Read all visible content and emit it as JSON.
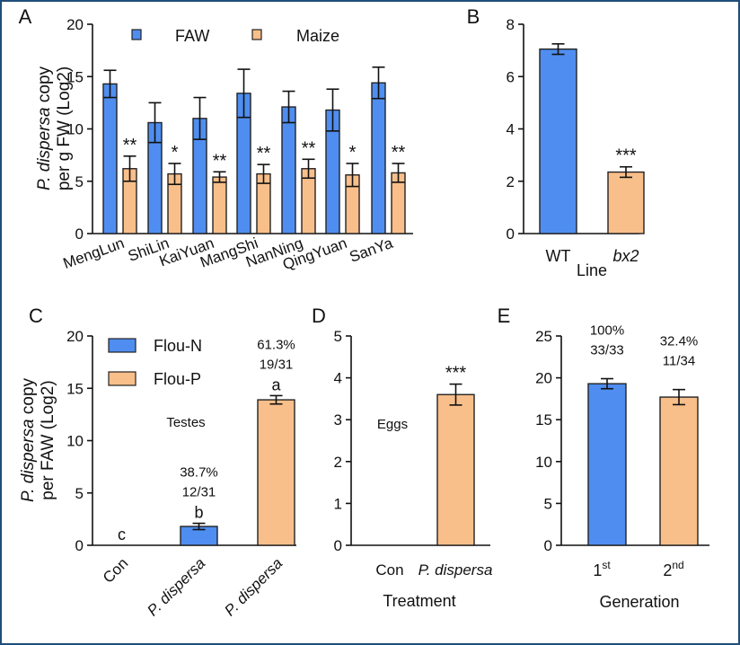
{
  "colors": {
    "blue": "#4f8ef0",
    "orange": "#f9bf8a",
    "stroke": "#222222"
  },
  "chart_data": [
    {
      "panel": "A",
      "type": "bar",
      "ylabel_italic": "P. dispersa",
      "ylabel_rest": " copy",
      "ylabel_line2": "per g FW (Log2)",
      "ylim": [
        0,
        20
      ],
      "yticks": [
        "0",
        "5",
        "10",
        "15",
        "20"
      ],
      "categories": [
        "MengLun",
        "ShiLin",
        "KaiYuan",
        "MangShi",
        "NanNing",
        "QingYuan",
        "SanYa"
      ],
      "legend_position": "top",
      "series": [
        {
          "name": "FAW",
          "color": "#4f8ef0",
          "values": [
            14.3,
            10.6,
            11.0,
            13.4,
            12.1,
            11.8,
            14.4
          ],
          "errors": [
            1.3,
            1.9,
            2.0,
            2.3,
            1.5,
            2.0,
            1.5
          ]
        },
        {
          "name": "Maize",
          "color": "#f9bf8a",
          "values": [
            6.2,
            5.7,
            5.4,
            5.7,
            6.2,
            5.6,
            5.8
          ],
          "errors": [
            1.2,
            1.0,
            0.5,
            0.9,
            0.9,
            1.1,
            0.9
          ]
        }
      ],
      "significance": [
        "**",
        "*",
        "**",
        "**",
        "**",
        "*",
        "**"
      ]
    },
    {
      "panel": "B",
      "type": "bar",
      "xlabel": "Line",
      "ylim": [
        0,
        8
      ],
      "yticks": [
        "0",
        "2",
        "4",
        "6",
        "8"
      ],
      "categories": [
        "WT",
        "bx2"
      ],
      "values": [
        7.05,
        2.35
      ],
      "errors": [
        0.2,
        0.2
      ],
      "colors": [
        "#4f8ef0",
        "#f9bf8a"
      ],
      "significance": [
        "",
        "***"
      ]
    },
    {
      "panel": "C",
      "type": "bar",
      "ylabel_italic": "P. dispersa",
      "ylabel_rest": " copy",
      "ylabel_line2": "per FAW (Log2)",
      "ylim": [
        0,
        20
      ],
      "yticks": [
        "0",
        "5",
        "10",
        "15",
        "20"
      ],
      "categories": [
        "Con",
        "P. dispersa",
        "P. dispersa"
      ],
      "values": [
        0,
        1.8,
        13.9
      ],
      "errors": [
        0,
        0.3,
        0.4
      ],
      "colors": [
        "#4f8ef0",
        "#4f8ef0",
        "#f9bf8a"
      ],
      "letters": [
        "c",
        "b",
        "a"
      ],
      "percent_labels": [
        "",
        "38.7%",
        "61.3%"
      ],
      "count_labels": [
        "",
        "12/31",
        "19/31"
      ],
      "annotation": "Testes",
      "legend": [
        {
          "name": "Flou-N",
          "color": "#4f8ef0"
        },
        {
          "name": "Flou-P",
          "color": "#f9bf8a"
        }
      ]
    },
    {
      "panel": "D",
      "type": "bar",
      "xlabel": "Treatment",
      "ylim": [
        0,
        5
      ],
      "yticks": [
        "0",
        "1",
        "2",
        "3",
        "4",
        "5"
      ],
      "categories": [
        "Con",
        "P. dispersa"
      ],
      "values": [
        0,
        3.6
      ],
      "errors": [
        0,
        0.25
      ],
      "colors": [
        "#f9bf8a",
        "#f9bf8a"
      ],
      "significance": [
        "",
        "***"
      ],
      "annotation": "Eggs"
    },
    {
      "panel": "E",
      "type": "bar",
      "xlabel": "Generation",
      "ylim": [
        0,
        25
      ],
      "yticks": [
        "0",
        "5",
        "10",
        "15",
        "20",
        "25"
      ],
      "categories": [
        "1",
        "2"
      ],
      "superscripts": [
        "st",
        "nd"
      ],
      "values": [
        19.3,
        17.7
      ],
      "errors": [
        0.6,
        0.9
      ],
      "colors": [
        "#4f8ef0",
        "#f9bf8a"
      ],
      "percent_labels": [
        "100%",
        "32.4%"
      ],
      "count_labels": [
        "33/33",
        "11/34"
      ]
    }
  ]
}
